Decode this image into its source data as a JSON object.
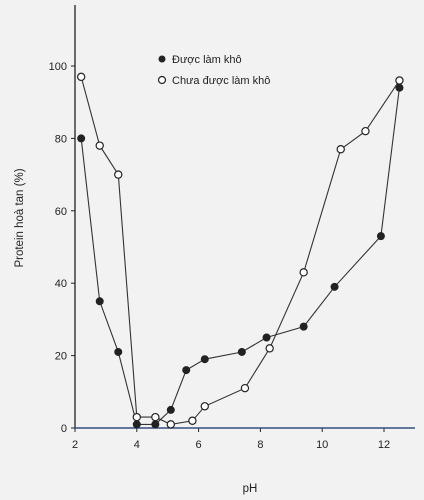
{
  "chart_data": {
    "type": "line",
    "title": "",
    "xlabel": "pH",
    "ylabel": "Protein hoà tan (%)",
    "xlim": [
      2,
      13
    ],
    "ylim": [
      0,
      105
    ],
    "xticks": [
      2,
      4,
      6,
      8,
      10,
      12
    ],
    "yticks": [
      0,
      20,
      40,
      60,
      80,
      100
    ],
    "grid": false,
    "legend_position": "top-center",
    "series": [
      {
        "name": "Được làm khô",
        "marker": "filled-circle",
        "x": [
          2.2,
          2.8,
          3.4,
          4.0,
          4.6,
          5.1,
          5.6,
          6.2,
          7.4,
          8.2,
          9.4,
          10.4,
          11.9,
          12.5
        ],
        "y": [
          80,
          35,
          21,
          1,
          1,
          5,
          16,
          19,
          21,
          25,
          28,
          39,
          53,
          94
        ]
      },
      {
        "name": "Chưa được làm khô",
        "marker": "open-circle",
        "x": [
          2.2,
          2.8,
          3.4,
          4.0,
          4.6,
          5.1,
          5.8,
          6.2,
          7.5,
          8.3,
          9.4,
          10.6,
          11.4,
          12.5
        ],
        "y": [
          97,
          78,
          70,
          3,
          3,
          1,
          2,
          6,
          11,
          22,
          43,
          77,
          82,
          96
        ]
      },
      {
        "name": "",
        "marker": "none",
        "x": [
          2.0,
          13.0
        ],
        "y": [
          0,
          0
        ]
      }
    ]
  }
}
